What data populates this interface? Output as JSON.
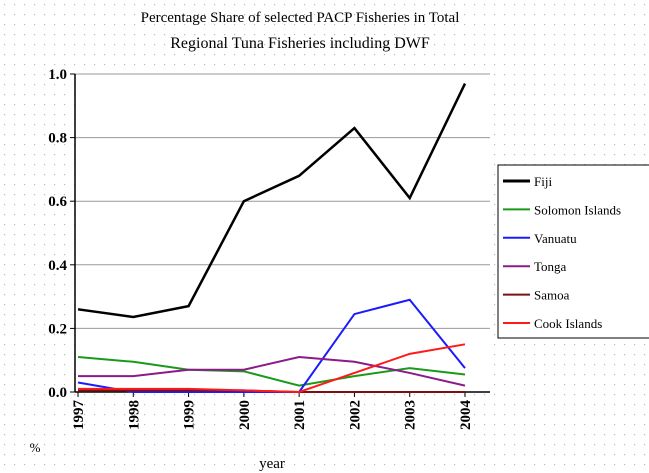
{
  "chart_data": {
    "type": "line",
    "title_lines": [
      "Percentage Share of selected PACP Fisheries in Total",
      "Regional Tuna Fisheries including DWF"
    ],
    "x_label": "year",
    "y_label": "%",
    "categories": [
      "1997",
      "1998",
      "1999",
      "2000",
      "2001",
      "2002",
      "2003",
      "2004"
    ],
    "series": [
      {
        "name": "Fiji",
        "color": "#000000",
        "values": [
          0.26,
          0.236,
          0.27,
          0.6,
          0.68,
          0.83,
          0.61,
          0.97
        ]
      },
      {
        "name": "Solomon Islands",
        "color": "#1a9a1a",
        "values": [
          0.11,
          0.095,
          0.07,
          0.065,
          0.02,
          0.05,
          0.075,
          0.055
        ]
      },
      {
        "name": "Vanuatu",
        "color": "#1a1aff",
        "values": [
          0.03,
          0.0,
          0.0,
          0.0,
          0.0,
          0.245,
          0.29,
          0.075
        ]
      },
      {
        "name": "Tonga",
        "color": "#8b1a8b",
        "values": [
          0.05,
          0.05,
          0.07,
          0.07,
          0.11,
          0.095,
          0.06,
          0.02
        ]
      },
      {
        "name": "Samoa",
        "color": "#7a1010",
        "values": [
          0.005,
          0.005,
          0.005,
          0.005,
          0.0,
          0.0,
          0.0,
          0.0
        ]
      },
      {
        "name": "Cook Islands",
        "color": "#ff1a1a",
        "values": [
          0.01,
          0.01,
          0.01,
          0.005,
          0.0,
          0.06,
          0.12,
          0.15
        ]
      }
    ],
    "ylim": [
      0,
      1
    ],
    "yticks": [
      {
        "value": 0,
        "label": "0.0"
      },
      0.2,
      0.4,
      0.6,
      0.8,
      {
        "value": 1,
        "label": "1.0"
      }
    ],
    "grid": true,
    "legend": "right"
  }
}
